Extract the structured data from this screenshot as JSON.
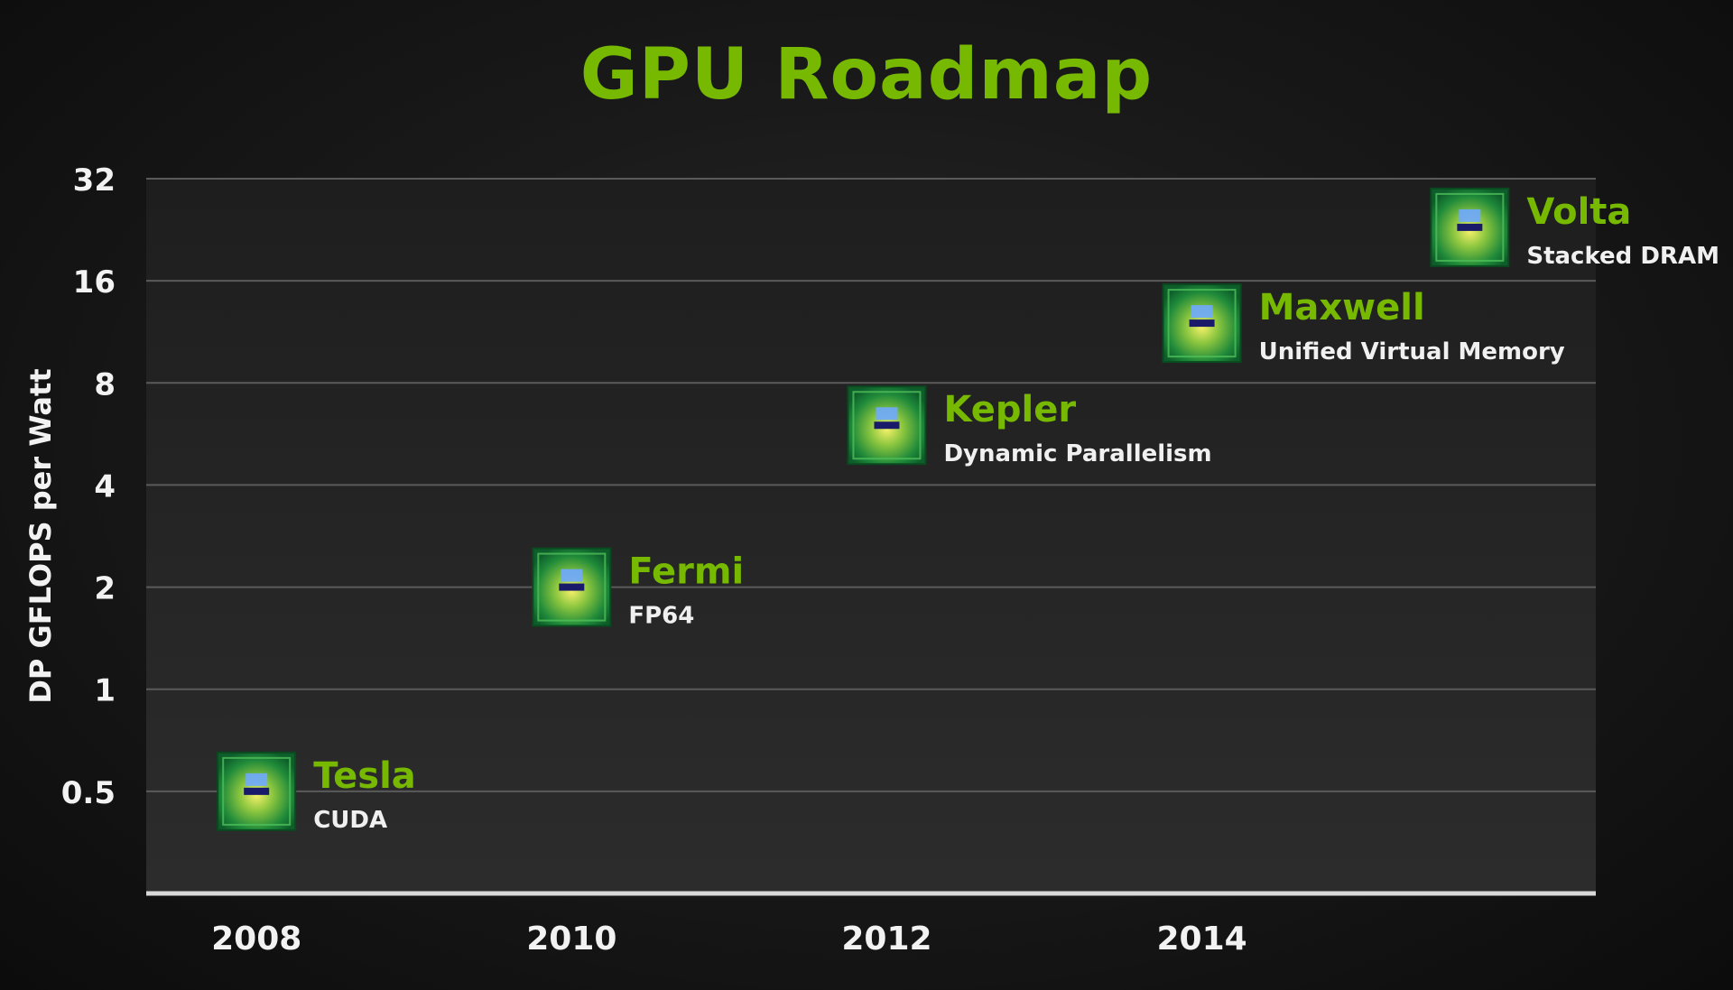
{
  "title": "GPU Roadmap",
  "colors": {
    "accent": "#76b900",
    "text": "#f2f2f2",
    "gridline": "#5a5a5a",
    "plot_background": "#262626"
  },
  "chart_data": {
    "type": "scatter",
    "title": "GPU Roadmap",
    "xlabel": "",
    "ylabel": "DP GFLOPS per Watt",
    "y_scale": "log2",
    "ylim": [
      0.25,
      32
    ],
    "xlim": [
      2007.3,
      2016.5
    ],
    "y_ticks": [
      0.5,
      1,
      2,
      4,
      8,
      16,
      32
    ],
    "y_tick_labels": [
      "0.5",
      "1",
      "2",
      "4",
      "8",
      "16",
      "32"
    ],
    "x_ticks": [
      2008,
      2010,
      2012,
      2014
    ],
    "x_tick_labels": [
      "2008",
      "2010",
      "2012",
      "2014"
    ],
    "grid": true,
    "marker_icon": "gpu-chip-icon",
    "points": [
      {
        "x": 2008,
        "y": 0.5,
        "name": "Tesla",
        "feature": "CUDA"
      },
      {
        "x": 2010,
        "y": 2,
        "name": "Fermi",
        "feature": "FP64"
      },
      {
        "x": 2012,
        "y": 6,
        "name": "Kepler",
        "feature": "Dynamic Parallelism"
      },
      {
        "x": 2014,
        "y": 12,
        "name": "Maxwell",
        "feature": "Unified Virtual Memory"
      },
      {
        "x": 2015.7,
        "y": 23,
        "name": "Volta",
        "feature": "Stacked DRAM"
      }
    ]
  }
}
